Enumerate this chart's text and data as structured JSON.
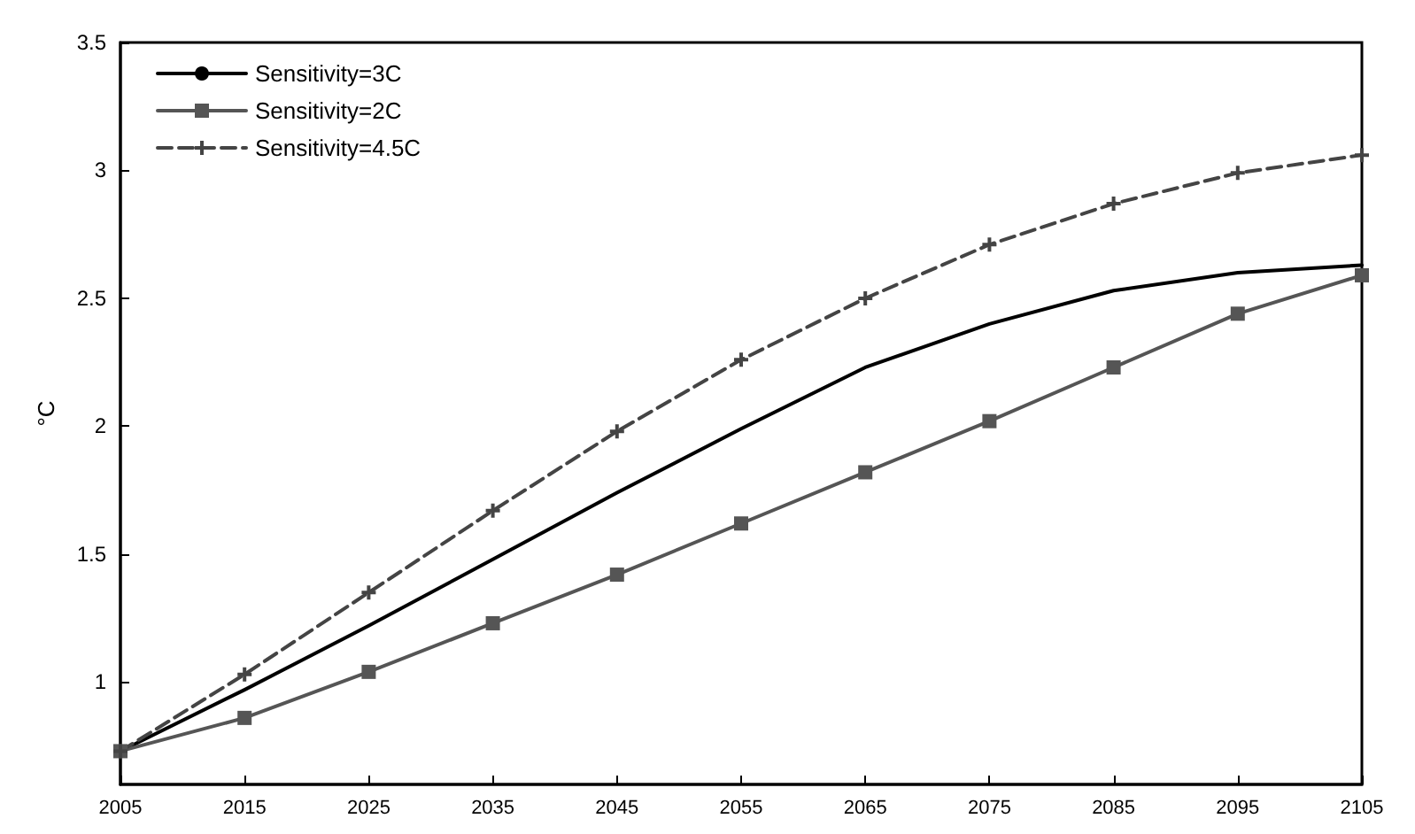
{
  "chart_data": {
    "type": "line",
    "ylabel": "°C",
    "x": [
      2005,
      2015,
      2025,
      2035,
      2045,
      2055,
      2065,
      2075,
      2085,
      2095,
      2105
    ],
    "xlim": [
      2005,
      2105
    ],
    "xticks": [
      2005,
      2015,
      2025,
      2035,
      2045,
      2055,
      2065,
      2075,
      2085,
      2095,
      2105
    ],
    "ylim": [
      0.6,
      3.5
    ],
    "yticks": [
      1,
      1.5,
      2,
      2.5,
      3,
      3.5
    ],
    "grid": false,
    "legend": "top left",
    "series": [
      {
        "name": "Sensitivity=3C",
        "color": "#000000",
        "marker": "none",
        "line_style": "solid",
        "values": [
          0.73,
          0.97,
          1.22,
          1.48,
          1.74,
          1.99,
          2.23,
          2.4,
          2.53,
          2.6,
          2.63
        ]
      },
      {
        "name": "Sensitivity=2C",
        "color": "#555555",
        "marker": "square",
        "line_style": "solid",
        "values": [
          0.73,
          0.86,
          1.04,
          1.23,
          1.42,
          1.62,
          1.82,
          2.02,
          2.23,
          2.44,
          2.59
        ]
      },
      {
        "name": "Sensitivity=4.5C",
        "color": "#444444",
        "marker": "cross",
        "line_style": "dashed",
        "values": [
          0.73,
          1.03,
          1.35,
          1.67,
          1.98,
          2.26,
          2.5,
          2.71,
          2.87,
          2.99,
          3.06
        ]
      }
    ]
  }
}
